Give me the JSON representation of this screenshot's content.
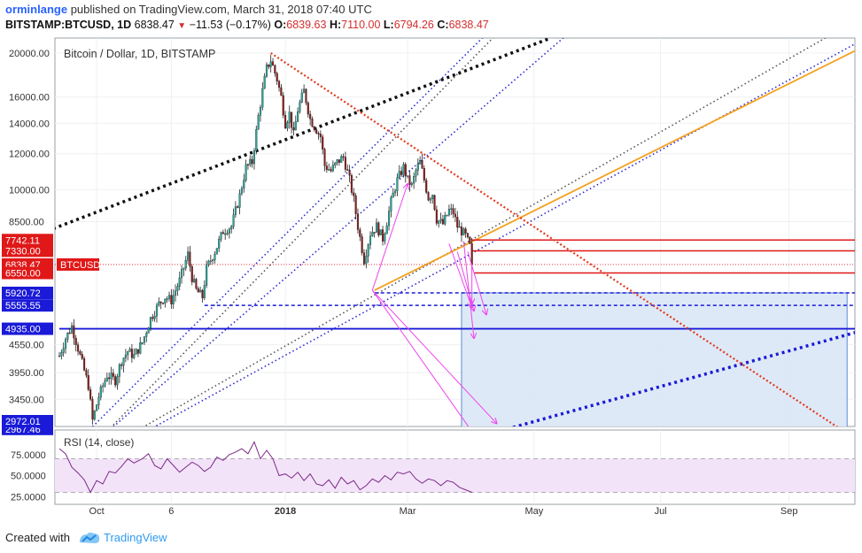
{
  "header": {
    "author": "orminlange",
    "published_text": "published on TradingView.com, March 31, 2018 07:40 UTC",
    "symbol": "BITSTAMP:BTCUSD, 1D",
    "last": "6838.47",
    "change": "−11.53 (−0.17%)",
    "open_label": "O:",
    "open": "6839.63",
    "high_label": "H:",
    "high": "7110.00",
    "low_label": "L:",
    "low": "6794.26",
    "close_label": "C:",
    "close": "6838.47"
  },
  "chart_data": {
    "type": "candlestick",
    "title": "Bitcoin / Dollar, 1D, BITSTAMP",
    "y_scale": "log",
    "ylim": [
      2800,
      22000
    ],
    "y_ticks": [
      {
        "value": 20000,
        "label": "20000.00"
      },
      {
        "value": 16000,
        "label": "16000.00"
      },
      {
        "value": 14000,
        "label": "14000.00"
      },
      {
        "value": 12000,
        "label": "12000.00"
      },
      {
        "value": 10000,
        "label": "10000.00"
      },
      {
        "value": 8500,
        "label": "8500.00"
      },
      {
        "value": 4550,
        "label": "4550.00"
      },
      {
        "value": 3950,
        "label": "3950.00"
      },
      {
        "value": 3450,
        "label": "3450.00"
      }
    ],
    "x_ticks": [
      {
        "label": "Oct",
        "bold": false,
        "day": 18
      },
      {
        "label": "6",
        "bold": false,
        "day": 54
      },
      {
        "label": "2018",
        "bold": true,
        "day": 109
      },
      {
        "label": "Mar",
        "bold": false,
        "day": 168
      },
      {
        "label": "May",
        "bold": false,
        "day": 229
      },
      {
        "label": "Jul",
        "bold": false,
        "day": 290
      },
      {
        "label": "Sep",
        "bold": false,
        "day": 352
      }
    ],
    "price_labels": [
      {
        "value": 7742.11,
        "label": "7742.11",
        "color": "#e01818"
      },
      {
        "value": 7330.0,
        "label": "7330.00",
        "color": "#e01818"
      },
      {
        "value": 6838.47,
        "label": "6838.47",
        "color": "#e01818"
      },
      {
        "value": 6550.0,
        "label": "6550.00",
        "color": "#e01818"
      },
      {
        "value": 5920.72,
        "label": "5920.72",
        "color": "#1a1ad8"
      },
      {
        "value": 5555.55,
        "label": "5555.55",
        "color": "#1a1ad8"
      },
      {
        "value": 4935.0,
        "label": "4935.00",
        "color": "#1a1ad8"
      },
      {
        "value": 2967.46,
        "label": "2967.46",
        "color": "#1a1ad8"
      },
      {
        "value": 2972.01,
        "label": "2972.01",
        "color": "#1a1ad8"
      }
    ],
    "symbol_tag": "BTCUSD",
    "last_price": 6838.47,
    "path_points": [
      [
        0,
        4300
      ],
      [
        3,
        4700
      ],
      [
        6,
        5000
      ],
      [
        10,
        4300
      ],
      [
        14,
        3700
      ],
      [
        16,
        3100
      ],
      [
        19,
        3500
      ],
      [
        23,
        3900
      ],
      [
        27,
        3800
      ],
      [
        30,
        4200
      ],
      [
        33,
        4400
      ],
      [
        36,
        4300
      ],
      [
        40,
        4600
      ],
      [
        44,
        5200
      ],
      [
        48,
        5600
      ],
      [
        51,
        5800
      ],
      [
        54,
        5700
      ],
      [
        58,
        6300
      ],
      [
        62,
        7200
      ],
      [
        64,
        6400
      ],
      [
        66,
        6000
      ],
      [
        69,
        5800
      ],
      [
        71,
        6700
      ],
      [
        75,
        7300
      ],
      [
        79,
        8100
      ],
      [
        83,
        8300
      ],
      [
        87,
        9700
      ],
      [
        90,
        11200
      ],
      [
        93,
        11500
      ],
      [
        96,
        14500
      ],
      [
        98,
        16500
      ],
      [
        100,
        18500
      ],
      [
        102,
        19300
      ],
      [
        105,
        17500
      ],
      [
        107,
        16000
      ],
      [
        109,
        14000
      ],
      [
        111,
        14700
      ],
      [
        113,
        13200
      ],
      [
        115,
        15000
      ],
      [
        118,
        16500
      ],
      [
        121,
        14300
      ],
      [
        123,
        13800
      ],
      [
        126,
        13100
      ],
      [
        128,
        11300
      ],
      [
        131,
        11000
      ],
      [
        134,
        11500
      ],
      [
        137,
        11800
      ],
      [
        140,
        10500
      ],
      [
        142,
        9500
      ],
      [
        144,
        8300
      ],
      [
        147,
        7000
      ],
      [
        150,
        8000
      ],
      [
        153,
        8300
      ],
      [
        156,
        7800
      ],
      [
        158,
        8500
      ],
      [
        160,
        9400
      ],
      [
        163,
        10500
      ],
      [
        166,
        11200
      ],
      [
        168,
        10500
      ],
      [
        170,
        10200
      ],
      [
        172,
        11000
      ],
      [
        174,
        11500
      ],
      [
        176,
        10500
      ],
      [
        178,
        9600
      ],
      [
        180,
        9800
      ],
      [
        182,
        8600
      ],
      [
        185,
        8400
      ],
      [
        188,
        9000
      ],
      [
        190,
        8900
      ],
      [
        192,
        8300
      ],
      [
        194,
        8100
      ],
      [
        196,
        7900
      ],
      [
        198,
        7500
      ],
      [
        199,
        6838.47
      ]
    ],
    "overlays": {
      "horizontal_levels": [
        7742.11,
        7330.0,
        6550.0,
        5920.72,
        5555.55,
        4935.0,
        2967.46
      ],
      "resistance_line": {
        "from_day": 102,
        "from_price": 20000,
        "to_day": 380,
        "to_price": 2900
      },
      "support_line": {
        "from_day": 152,
        "from_price": 6000,
        "to_day": 390,
        "to_price": 20900
      },
      "projection_box": {
        "from_day": 194,
        "to_day": 380,
        "low_price": 2850,
        "high_price": 5920.72
      }
    }
  },
  "rsi": {
    "title": "RSI (14, close)",
    "ticks": [
      {
        "value": 75,
        "label": "75.0000"
      },
      {
        "value": 50,
        "label": "50.0000"
      },
      {
        "value": 25,
        "label": "25.0000"
      }
    ],
    "band": [
      30,
      70
    ],
    "values": [
      [
        0,
        82
      ],
      [
        3,
        76
      ],
      [
        6,
        60
      ],
      [
        9,
        53
      ],
      [
        12,
        45
      ],
      [
        15,
        30
      ],
      [
        18,
        44
      ],
      [
        21,
        40
      ],
      [
        24,
        55
      ],
      [
        27,
        53
      ],
      [
        30,
        61
      ],
      [
        33,
        70
      ],
      [
        36,
        65
      ],
      [
        40,
        70
      ],
      [
        43,
        76
      ],
      [
        46,
        62
      ],
      [
        49,
        58
      ],
      [
        52,
        70
      ],
      [
        55,
        62
      ],
      [
        58,
        54
      ],
      [
        61,
        60
      ],
      [
        64,
        66
      ],
      [
        67,
        62
      ],
      [
        70,
        55
      ],
      [
        73,
        60
      ],
      [
        76,
        72
      ],
      [
        79,
        68
      ],
      [
        82,
        75
      ],
      [
        85,
        78
      ],
      [
        88,
        82
      ],
      [
        91,
        76
      ],
      [
        94,
        90
      ],
      [
        97,
        70
      ],
      [
        100,
        80
      ],
      [
        103,
        70
      ],
      [
        106,
        50
      ],
      [
        109,
        52
      ],
      [
        112,
        47
      ],
      [
        115,
        54
      ],
      [
        118,
        44
      ],
      [
        121,
        52
      ],
      [
        124,
        40
      ],
      [
        127,
        38
      ],
      [
        130,
        45
      ],
      [
        133,
        35
      ],
      [
        136,
        48
      ],
      [
        139,
        40
      ],
      [
        142,
        44
      ],
      [
        145,
        33
      ],
      [
        148,
        38
      ],
      [
        151,
        46
      ],
      [
        154,
        42
      ],
      [
        157,
        50
      ],
      [
        160,
        45
      ],
      [
        163,
        54
      ],
      [
        166,
        52
      ],
      [
        169,
        55
      ],
      [
        172,
        46
      ],
      [
        175,
        41
      ],
      [
        178,
        46
      ],
      [
        181,
        44
      ],
      [
        184,
        38
      ],
      [
        187,
        44
      ],
      [
        190,
        42
      ],
      [
        193,
        36
      ],
      [
        196,
        33
      ],
      [
        199,
        30
      ]
    ]
  },
  "footer": {
    "created_with": "Created with",
    "brand": "TradingView"
  },
  "colors": {
    "up": "#26a69a",
    "down": "#8b1a1a",
    "resistance": "#e03a1e",
    "support": "#f5a01e",
    "level_red": "#e01818",
    "level_blue": "#1a1ad8",
    "rsi_line": "#7b2b86",
    "box_fill": "#dbe7f7"
  }
}
